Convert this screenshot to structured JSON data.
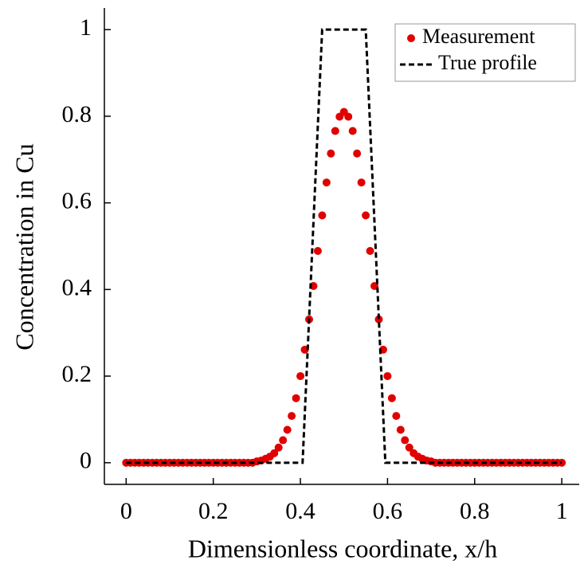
{
  "chart_data": {
    "type": "line",
    "xlabel": "Dimensionless coordinate, x/h",
    "ylabel": "Concentration in Cu",
    "xlim": [
      -0.05,
      1.04
    ],
    "ylim": [
      -0.05,
      1.05
    ],
    "xticks": [
      0,
      0.2,
      0.4,
      0.6,
      0.8,
      1
    ],
    "yticks": [
      0,
      0.2,
      0.4,
      0.6,
      0.8,
      1
    ],
    "legend": "upper right",
    "series": [
      {
        "name": "Measurement",
        "style": "markers",
        "color": "#e00000",
        "x": [
          0,
          0.01,
          0.02,
          0.03,
          0.04,
          0.05,
          0.06,
          0.07,
          0.08,
          0.09,
          0.1,
          0.11,
          0.12,
          0.13,
          0.14,
          0.15,
          0.16,
          0.17,
          0.18,
          0.19,
          0.2,
          0.21,
          0.22,
          0.23,
          0.24,
          0.25,
          0.26,
          0.27,
          0.28,
          0.29,
          0.3,
          0.31,
          0.32,
          0.33,
          0.34,
          0.35,
          0.36,
          0.37,
          0.38,
          0.39,
          0.4,
          0.41,
          0.42,
          0.43,
          0.44,
          0.45,
          0.46,
          0.47,
          0.48,
          0.49,
          0.5,
          0.51,
          0.52,
          0.53,
          0.54,
          0.55,
          0.56,
          0.57,
          0.58,
          0.59,
          0.6,
          0.61,
          0.62,
          0.63,
          0.64,
          0.65,
          0.66,
          0.67,
          0.68,
          0.69,
          0.7,
          0.71,
          0.72,
          0.73,
          0.74,
          0.75,
          0.76,
          0.77,
          0.78,
          0.79,
          0.8,
          0.81,
          0.82,
          0.83,
          0.84,
          0.85,
          0.86,
          0.87,
          0.88,
          0.89,
          0.9,
          0.91,
          0.92,
          0.93,
          0.94,
          0.95,
          0.96,
          0.97,
          0.98,
          0.99,
          1
        ],
        "values": [
          0,
          0,
          0,
          0,
          0,
          0,
          0,
          0,
          0,
          0,
          0,
          0,
          0,
          0,
          0,
          0,
          0,
          0,
          0,
          0,
          0,
          0,
          0,
          0,
          0,
          0,
          0,
          0,
          0,
          0,
          0.003,
          0.005,
          0.009,
          0.014,
          0.022,
          0.035,
          0.052,
          0.076,
          0.108,
          0.149,
          0.2,
          0.261,
          0.331,
          0.408,
          0.489,
          0.571,
          0.647,
          0.714,
          0.766,
          0.799,
          0.81,
          0.799,
          0.766,
          0.714,
          0.647,
          0.571,
          0.489,
          0.408,
          0.331,
          0.261,
          0.2,
          0.149,
          0.108,
          0.076,
          0.052,
          0.035,
          0.022,
          0.014,
          0.009,
          0.005,
          0.003,
          0,
          0,
          0,
          0,
          0,
          0,
          0,
          0,
          0,
          0,
          0,
          0,
          0,
          0,
          0,
          0,
          0,
          0,
          0,
          0,
          0,
          0,
          0,
          0,
          0,
          0,
          0,
          0,
          0,
          0
        ]
      },
      {
        "name": "True profile",
        "style": "dashed",
        "color": "#000000",
        "x": [
          0,
          0.405,
          0.45,
          0.55,
          0.595,
          1
        ],
        "values": [
          0,
          0,
          1,
          1,
          0,
          0
        ]
      }
    ]
  }
}
